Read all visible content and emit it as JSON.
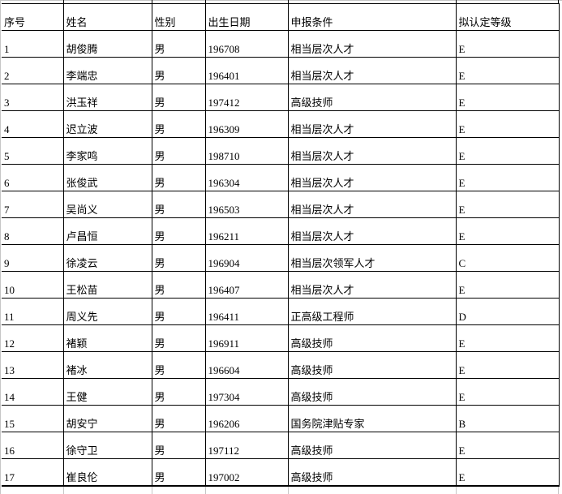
{
  "table": {
    "columns": [
      {
        "key": "index",
        "label": "序号"
      },
      {
        "key": "name",
        "label": "姓名"
      },
      {
        "key": "gender",
        "label": "性别"
      },
      {
        "key": "birth",
        "label": "出生日期"
      },
      {
        "key": "condition",
        "label": "申报条件"
      },
      {
        "key": "grade",
        "label": "拟认定等级"
      }
    ],
    "rows": [
      [
        "1",
        "胡俊腾",
        "男",
        "196708",
        "相当层次人才",
        "E"
      ],
      [
        "2",
        "李端忠",
        "男",
        "196401",
        "相当层次人才",
        "E"
      ],
      [
        "3",
        "洪玉祥",
        "男",
        "197412",
        "高级技师",
        "E"
      ],
      [
        "4",
        "迟立波",
        "男",
        "196309",
        "相当层次人才",
        "E"
      ],
      [
        "5",
        "李家鸣",
        "男",
        "198710",
        "相当层次人才",
        "E"
      ],
      [
        "6",
        "张俊武",
        "男",
        "196304",
        "相当层次人才",
        "E"
      ],
      [
        "7",
        "吴尚义",
        "男",
        "196503",
        "相当层次人才",
        "E"
      ],
      [
        "8",
        "卢昌恒",
        "男",
        "196211",
        "相当层次人才",
        "E"
      ],
      [
        "9",
        "徐凌云",
        "男",
        "196904",
        "相当层次领军人才",
        "C"
      ],
      [
        "10",
        "王松苗",
        "男",
        "196407",
        "相当层次人才",
        "E"
      ],
      [
        "11",
        "周义先",
        "男",
        "196411",
        "正高级工程师",
        "D"
      ],
      [
        "12",
        "褚颖",
        "男",
        "196911",
        "高级技师",
        "E"
      ],
      [
        "13",
        "褚冰",
        "男",
        "196604",
        "高级技师",
        "E"
      ],
      [
        "14",
        "王健",
        "男",
        "197304",
        "高级技师",
        "E"
      ],
      [
        "15",
        "胡安宁",
        "男",
        "196206",
        "国务院津贴专家",
        "B"
      ],
      [
        "16",
        "徐守卫",
        "男",
        "197112",
        "高级技师",
        "E"
      ],
      [
        "17",
        "崔良伦",
        "男",
        "197002",
        "高级技师",
        "E"
      ]
    ]
  },
  "colors": {
    "border": "#000000",
    "gridline": "#c6c6c6",
    "background": "#ffffff",
    "text": "#000000"
  }
}
